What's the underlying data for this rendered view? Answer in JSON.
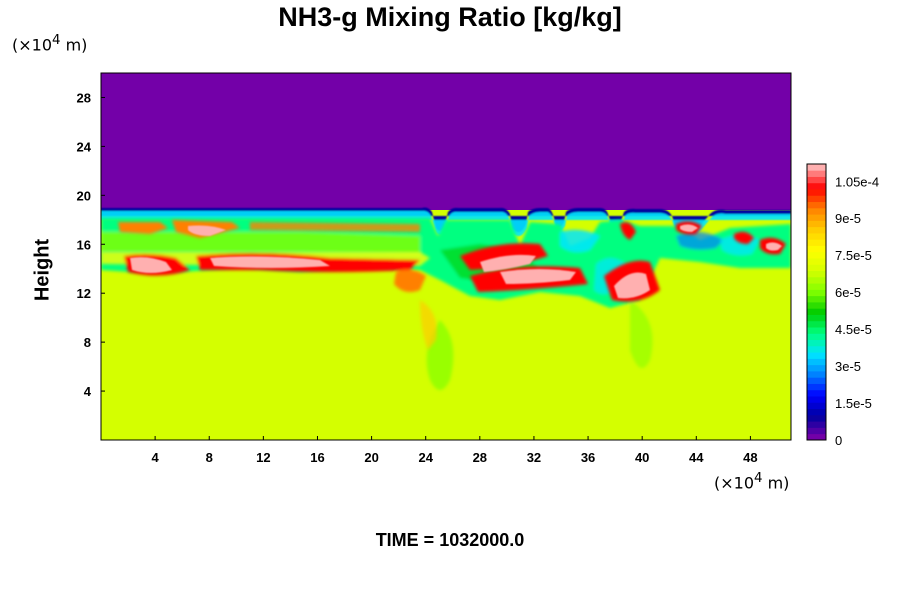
{
  "chart_data": {
    "type": "heatmap",
    "title": "NH3-g Mixing Ratio [kg/kg]",
    "ylabel": "Height",
    "x_unit": "(×10",
    "x_unit_exp": "4",
    "x_unit_suffix": " m)",
    "y_unit": "(×10",
    "y_unit_exp": "4",
    "y_unit_suffix": " m)",
    "xlim": [
      0,
      51
    ],
    "ylim": [
      0,
      30
    ],
    "x_ticks": [
      4,
      8,
      12,
      16,
      20,
      24,
      28,
      32,
      36,
      40,
      44,
      48
    ],
    "x_tick_labels": [
      "4",
      "8",
      "12",
      "16",
      "20",
      "24",
      "28",
      "32",
      "36",
      "40",
      "44",
      "48"
    ],
    "y_ticks": [
      4,
      8,
      12,
      16,
      20,
      24,
      28
    ],
    "y_tick_labels": [
      "4",
      "8",
      "12",
      "16",
      "20",
      "24",
      "28"
    ],
    "colorbar": {
      "min": 0,
      "max": 0.000112,
      "labels": [
        "0",
        "1.5e-5",
        "3e-5",
        "4.5e-5",
        "6e-5",
        "7.5e-5",
        "9e-5",
        "1.05e-4"
      ],
      "label_values": [
        0,
        1.5e-05,
        3e-05,
        4.5e-05,
        6e-05,
        7.5e-05,
        9e-05,
        0.000105
      ],
      "colors": [
        "#7300a8",
        "#0000a0",
        "#0000ff",
        "#0080ff",
        "#00e5ff",
        "#00ff80",
        "#00cc00",
        "#80ff00",
        "#d4ff00",
        "#ffff00",
        "#ffcc00",
        "#ff8000",
        "#ff0000",
        "#ffb0b0"
      ]
    },
    "fields": {
      "upper_layer_height_max": 19,
      "upper_layer_value": 0,
      "lower_background_value": 7.8e-05,
      "band_value": 6e-05
    },
    "time_label": "TIME = 1032000.0"
  }
}
